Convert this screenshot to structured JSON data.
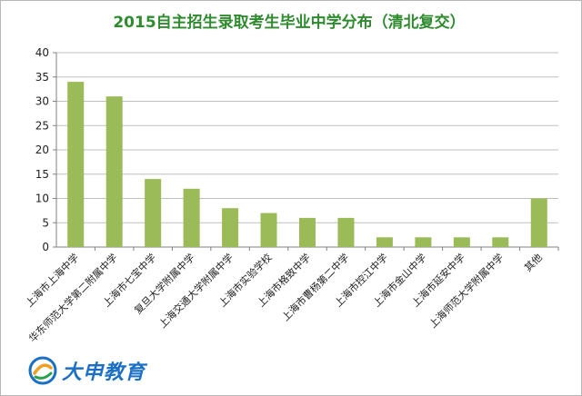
{
  "chart_data": {
    "type": "bar",
    "title": "2015自主招生录取考生毕业中学分布（清北复交）",
    "categories": [
      "上海市上海中学",
      "华东师范大学第二附属中学",
      "上海市七宝中学",
      "复旦大学附属中学",
      "上海交通大学附属中学",
      "上海市实验学校",
      "上海市格致中学",
      "上海市曹杨第二中学",
      "上海市控江中学",
      "上海市金山中学",
      "上海市延安中学",
      "上海师范大学附属中学",
      "其他"
    ],
    "values": [
      34,
      31,
      14,
      12,
      8,
      7,
      6,
      6,
      2,
      2,
      2,
      2,
      10
    ],
    "ylim": [
      0,
      40
    ],
    "yticks": [
      "0",
      "5",
      "10",
      "15",
      "20",
      "25",
      "30",
      "35",
      "40"
    ],
    "grid": true,
    "bar_color": "#9bbb59",
    "title_color": "#2e8b2e"
  },
  "watermark": {
    "text": "大申教育",
    "icon": "dashen-logo-icon"
  }
}
